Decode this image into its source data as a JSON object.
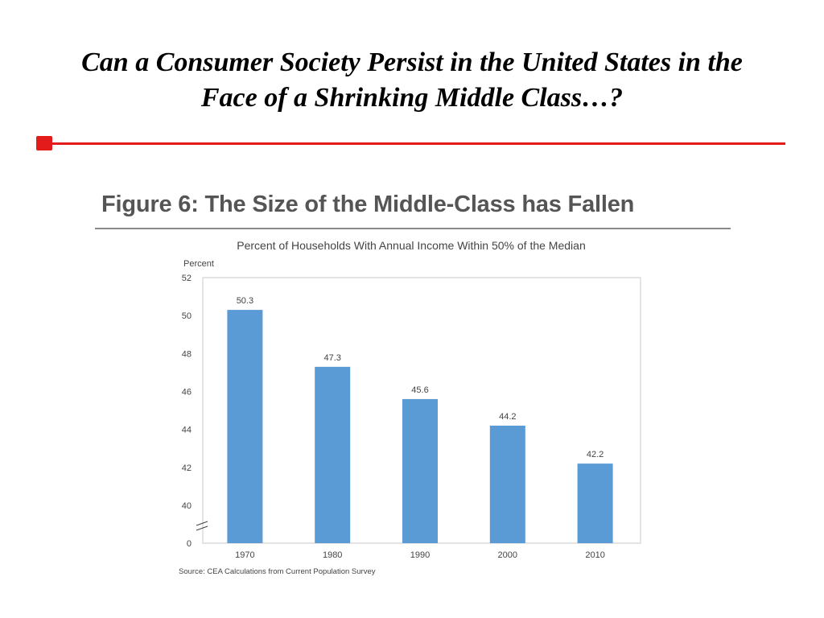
{
  "slide": {
    "title_line1": "Can a Consumer Society Persist in the United States in the",
    "title_line2": "Face of a Shrinking Middle Class…?",
    "accent_color": "#e31b1b"
  },
  "figure": {
    "title": "Figure 6: The Size of the Middle-Class has Fallen"
  },
  "chart_data": {
    "type": "bar",
    "title": "Percent of Households With Annual Income Within 50% of the Median",
    "ylabel": "Percent",
    "categories": [
      "1970",
      "1980",
      "1990",
      "2000",
      "2010"
    ],
    "values": [
      50.3,
      47.3,
      45.6,
      44.2,
      42.2
    ],
    "value_labels": [
      "50.3",
      "47.3",
      "45.6",
      "44.2",
      "42.2"
    ],
    "y_ticks": [
      52,
      50,
      48,
      46,
      44,
      42,
      40,
      0
    ],
    "ylim": [
      40,
      52
    ],
    "axis_break": true,
    "grid": false,
    "bar_color": "#5b9bd5",
    "source": "Source: CEA Calculations from Current Population Survey"
  }
}
